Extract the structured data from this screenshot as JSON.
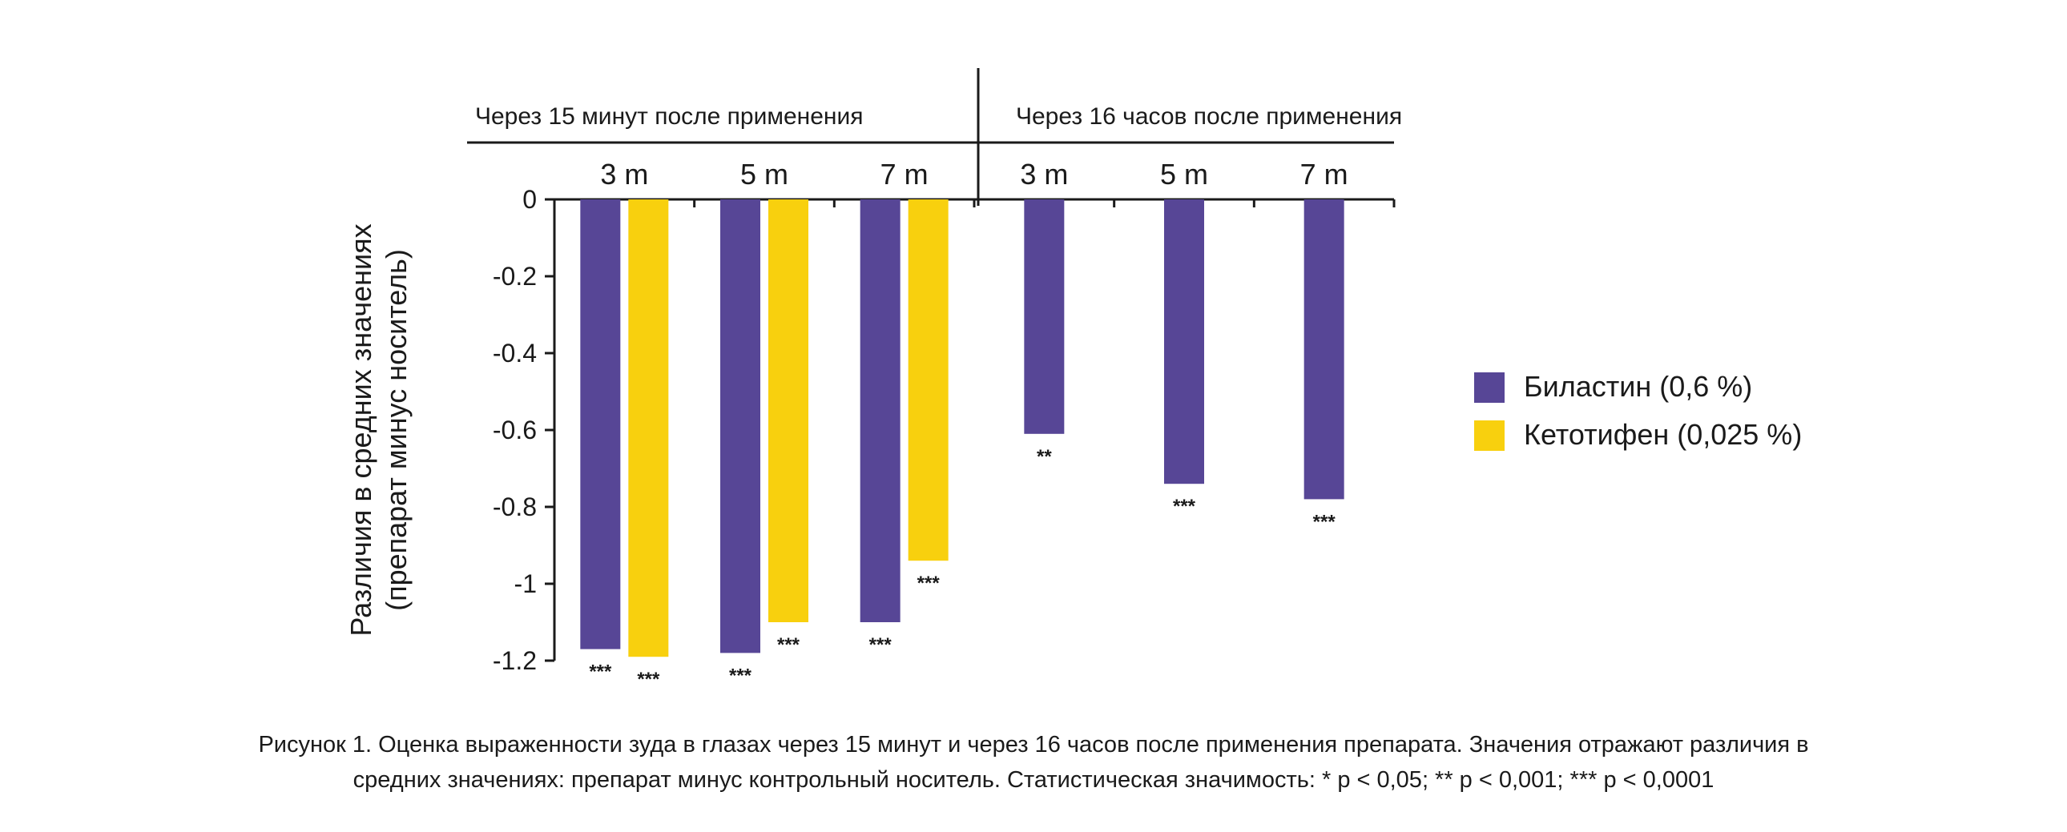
{
  "chart_data": {
    "type": "bar",
    "ylabel_line1": "Различия в средних значениях",
    "ylabel_line2": "(препарат минус носитель)",
    "ylim": [
      -1.2,
      0
    ],
    "yticks": [
      0,
      -0.2,
      -0.4,
      -0.6,
      -0.8,
      -1,
      -1.2
    ],
    "ytick_labels": [
      "0",
      "-0.2",
      "-0.4",
      "-0.6",
      "-0.8",
      "-1",
      "-1.2"
    ],
    "groups": [
      {
        "label": "Через 15 минут после применения",
        "categories": [
          "3 m",
          "5 m",
          "7 m"
        ]
      },
      {
        "label": "Через 16 часов после применения",
        "categories": [
          "3 m",
          "5 m",
          "7 m"
        ]
      }
    ],
    "series": [
      {
        "name": "Биластин (0,6 %)",
        "color": "#574696",
        "values": [
          -1.17,
          -1.18,
          -1.1,
          -0.61,
          -0.74,
          -0.78
        ],
        "significance": [
          "***",
          "***",
          "***",
          "**",
          "***",
          "***"
        ]
      },
      {
        "name": "Кетотифен (0,025 %)",
        "color": "#F8D00E",
        "values": [
          -1.19,
          -1.1,
          -0.94,
          null,
          null,
          null
        ],
        "significance": [
          "***",
          "***",
          "***",
          null,
          null,
          null
        ]
      }
    ],
    "legend_position": "right",
    "grid": false
  },
  "caption": {
    "line1": "Рисунок 1. Оценка выраженности зуда в глазах через 15 минут и через 16 часов после применения препарата. Значения отражают различия в",
    "line2": "средних значениях: препарат минус контрольный носитель. Статистическая значимость: * p < 0,05; ** p < 0,001; *** p < 0,0001"
  }
}
